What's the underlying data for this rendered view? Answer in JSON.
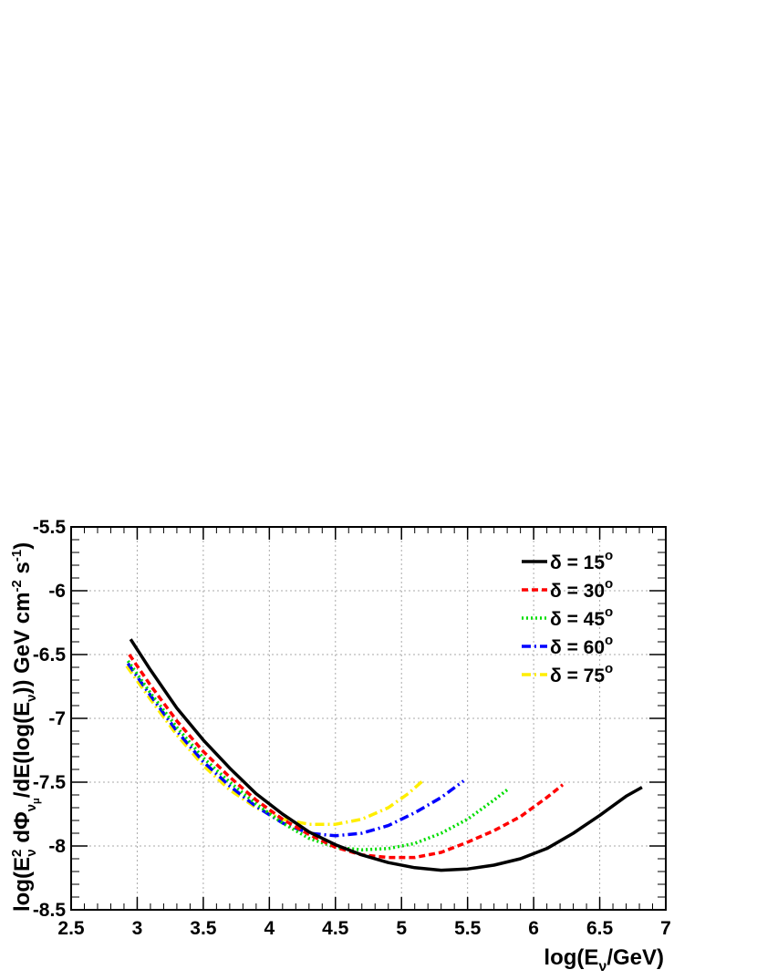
{
  "chart_data": {
    "type": "line",
    "title": "",
    "xlabel": {
      "main": "log(E",
      "sub": "ν",
      "tail": "/GeV)"
    },
    "ylabel": {
      "p1": "log(E",
      "sup1": "2",
      "sub1": "ν",
      "p2": " dΦ",
      "sub2": "ν",
      "subsub2": "μ",
      "p3": "/dE(log(E",
      "sub3": "ν",
      "p4": ")) GeV cm",
      "sup4": "-2",
      "p5": " s",
      "sup5": "-1",
      "p6": ")"
    },
    "xlim": [
      2.5,
      7.0
    ],
    "ylim": [
      -8.5,
      -5.5
    ],
    "xticks": [
      "2.5",
      "3",
      "3.5",
      "4",
      "4.5",
      "5",
      "5.5",
      "6",
      "6.5",
      "7"
    ],
    "yticks": [
      "-5.5",
      "-6",
      "-6.5",
      "-7",
      "-7.5",
      "-8",
      "-8.5"
    ],
    "grid": true,
    "legend_position": "top-right",
    "series": [
      {
        "name": "δ = 15",
        "sup": "o",
        "color": "#000000",
        "dash": "solid",
        "x": [
          2.95,
          3.1,
          3.3,
          3.5,
          3.7,
          3.9,
          4.1,
          4.3,
          4.5,
          4.7,
          4.9,
          5.1,
          5.3,
          5.5,
          5.7,
          5.9,
          6.1,
          6.3,
          6.5,
          6.7,
          6.82
        ],
        "y": [
          -6.38,
          -6.62,
          -6.92,
          -7.17,
          -7.39,
          -7.59,
          -7.75,
          -7.89,
          -7.99,
          -8.07,
          -8.13,
          -8.17,
          -8.19,
          -8.18,
          -8.15,
          -8.1,
          -8.02,
          -7.9,
          -7.76,
          -7.61,
          -7.54
        ]
      },
      {
        "name": "δ = 30",
        "sup": "o",
        "color": "#ff0000",
        "dash": "dash",
        "x": [
          2.94,
          3.1,
          3.3,
          3.5,
          3.7,
          3.9,
          4.1,
          4.3,
          4.5,
          4.7,
          4.9,
          5.1,
          5.3,
          5.5,
          5.7,
          5.9,
          6.1,
          6.22
        ],
        "y": [
          -6.5,
          -6.74,
          -7.02,
          -7.26,
          -7.46,
          -7.64,
          -7.79,
          -7.91,
          -8.01,
          -8.07,
          -8.09,
          -8.09,
          -8.05,
          -7.97,
          -7.88,
          -7.77,
          -7.62,
          -7.52
        ]
      },
      {
        "name": "δ = 45",
        "sup": "o",
        "color": "#00dd00",
        "dash": "dot",
        "x": [
          2.93,
          3.1,
          3.3,
          3.5,
          3.7,
          3.9,
          4.1,
          4.3,
          4.5,
          4.7,
          4.9,
          5.1,
          5.3,
          5.5,
          5.7,
          5.8
        ],
        "y": [
          -6.55,
          -6.8,
          -7.07,
          -7.31,
          -7.5,
          -7.67,
          -7.82,
          -7.94,
          -8.01,
          -8.03,
          -8.02,
          -7.98,
          -7.9,
          -7.79,
          -7.64,
          -7.56
        ]
      },
      {
        "name": "δ = 60",
        "sup": "o",
        "color": "#0000ff",
        "dash": "dashdot",
        "x": [
          2.93,
          3.1,
          3.3,
          3.5,
          3.7,
          3.9,
          4.1,
          4.3,
          4.5,
          4.7,
          4.9,
          5.1,
          5.3,
          5.47
        ],
        "y": [
          -6.57,
          -6.82,
          -7.1,
          -7.34,
          -7.53,
          -7.69,
          -7.82,
          -7.9,
          -7.92,
          -7.9,
          -7.84,
          -7.74,
          -7.62,
          -7.49
        ]
      },
      {
        "name": "δ = 75",
        "sup": "o",
        "color": "#ffee00",
        "dash": "dashdot",
        "x": [
          2.92,
          3.1,
          3.3,
          3.5,
          3.7,
          3.9,
          4.1,
          4.3,
          4.5,
          4.7,
          4.9,
          5.05,
          5.16
        ],
        "y": [
          -6.59,
          -6.85,
          -7.13,
          -7.37,
          -7.56,
          -7.7,
          -7.79,
          -7.83,
          -7.83,
          -7.79,
          -7.7,
          -7.59,
          -7.49
        ]
      }
    ]
  }
}
